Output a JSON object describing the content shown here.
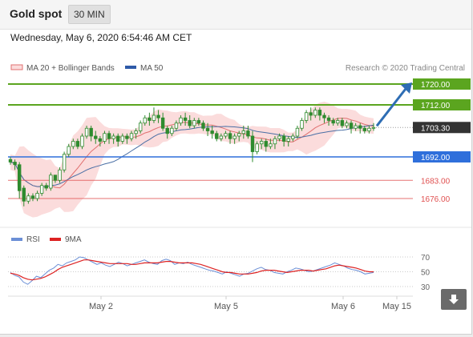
{
  "header": {
    "title": "Gold spot",
    "timeframe": "30 MIN"
  },
  "timestamp": "Wednesday, May 6, 2020 6:54:46 AM CET",
  "legend": {
    "bollinger": "MA 20 + Bollinger Bands",
    "ma50": "MA 50"
  },
  "credit": "Research © 2020 Trading Central",
  "colors": {
    "resistance": "#5ba51f",
    "support": "#2f6fdb",
    "target_red": "#e05050",
    "bollinger_fill": "#fbdcdc",
    "ma20": "#e07070",
    "ma50": "#4a6fa5",
    "candle": "#2e8b2e",
    "current_bg": "#333333",
    "arrow": "#2e6db4",
    "rsi": "#6b8fd6",
    "rsi_ma": "#dd2222"
  },
  "levels": [
    {
      "name": "resistance-2",
      "value": 1720.0,
      "label": "1720.00",
      "kind": "resistance"
    },
    {
      "name": "resistance-1",
      "value": 1712.0,
      "label": "1712.00",
      "kind": "resistance"
    },
    {
      "name": "current-price",
      "value": 1703.3,
      "label": "1703.30",
      "kind": "current"
    },
    {
      "name": "support-1",
      "value": 1692.0,
      "label": "1692.00",
      "kind": "support"
    },
    {
      "name": "support-2",
      "value": 1683.0,
      "label": "1683.00",
      "kind": "red"
    },
    {
      "name": "support-3",
      "value": 1676.0,
      "label": "1676.00",
      "kind": "red"
    }
  ],
  "rsi_panel": {
    "legend_rsi": "RSI",
    "legend_ma": "9MA",
    "ticks": [
      70,
      50,
      30
    ],
    "range": [
      15,
      85
    ],
    "rsi_values": [
      49,
      45,
      43,
      36,
      33,
      38,
      44,
      42,
      47,
      52,
      55,
      60,
      58,
      62,
      64,
      66,
      70,
      69,
      66,
      63,
      60,
      62,
      59,
      57,
      60,
      63,
      61,
      58,
      60,
      62,
      64,
      66,
      63,
      61,
      60,
      65,
      67,
      65,
      60,
      62,
      61,
      63,
      60,
      58,
      56,
      54,
      52,
      51,
      49,
      47,
      50,
      48,
      46,
      44,
      47,
      48,
      51,
      54,
      56,
      53,
      52,
      49,
      48,
      47,
      50,
      52,
      55,
      54,
      52,
      50,
      51,
      53,
      55,
      57,
      59,
      62,
      60,
      58,
      55,
      53,
      52,
      50,
      47,
      48,
      49
    ],
    "ma_values": [
      48,
      47,
      45,
      42,
      40,
      39,
      40,
      41,
      43,
      46,
      49,
      53,
      56,
      58,
      60,
      62,
      64,
      66,
      66,
      65,
      64,
      63,
      62,
      61,
      61,
      61,
      61,
      61,
      60,
      60,
      61,
      62,
      62,
      62,
      62,
      63,
      64,
      64,
      63,
      62,
      62,
      62,
      62,
      61,
      60,
      58,
      56,
      54,
      52,
      50,
      49,
      49,
      48,
      47,
      47,
      47,
      48,
      49,
      51,
      52,
      52,
      52,
      51,
      50,
      49,
      50,
      51,
      52,
      52,
      52,
      51,
      52,
      53,
      54,
      56,
      58,
      59,
      58,
      57,
      56,
      55,
      53,
      51,
      50,
      50
    ]
  },
  "x_axis": {
    "labels": [
      "May 2",
      "May 5",
      "May 6",
      "May 15"
    ]
  },
  "chart_data": {
    "type": "candlestick",
    "title": "Gold spot",
    "ylim": [
      1669,
      1726
    ],
    "candles": [
      [
        1691,
        1690,
        1689
      ],
      [
        1690,
        1689,
        1687
      ],
      [
        1689,
        1679,
        1676
      ],
      [
        1680,
        1675,
        1673
      ],
      [
        1675,
        1677,
        1674
      ],
      [
        1677,
        1676,
        1675
      ],
      [
        1676,
        1678,
        1675
      ],
      [
        1678,
        1681,
        1677
      ],
      [
        1681,
        1680,
        1679
      ],
      [
        1680,
        1685,
        1679
      ],
      [
        1685,
        1683,
        1682
      ],
      [
        1683,
        1687,
        1682
      ],
      [
        1687,
        1693,
        1686
      ],
      [
        1693,
        1696,
        1692
      ],
      [
        1696,
        1698,
        1695
      ],
      [
        1698,
        1696,
        1695
      ],
      [
        1696,
        1700,
        1695
      ],
      [
        1700,
        1703,
        1699
      ],
      [
        1703,
        1700,
        1698
      ],
      [
        1700,
        1699,
        1697
      ],
      [
        1699,
        1698,
        1696
      ],
      [
        1698,
        1701,
        1697
      ],
      [
        1701,
        1699,
        1697
      ],
      [
        1699,
        1700,
        1697
      ],
      [
        1700,
        1698,
        1696
      ],
      [
        1698,
        1700,
        1697
      ],
      [
        1700,
        1699,
        1697
      ],
      [
        1699,
        1701,
        1698
      ],
      [
        1701,
        1702,
        1699
      ],
      [
        1702,
        1705,
        1701
      ],
      [
        1705,
        1707,
        1704
      ],
      [
        1707,
        1706,
        1704
      ],
      [
        1706,
        1708,
        1705
      ],
      [
        1708,
        1707,
        1705
      ],
      [
        1707,
        1703,
        1702
      ],
      [
        1703,
        1701,
        1699
      ],
      [
        1701,
        1703,
        1700
      ],
      [
        1703,
        1705,
        1702
      ],
      [
        1705,
        1707,
        1704
      ],
      [
        1707,
        1706,
        1704
      ],
      [
        1706,
        1704,
        1703
      ],
      [
        1704,
        1706,
        1703
      ],
      [
        1706,
        1705,
        1704
      ],
      [
        1705,
        1703,
        1702
      ],
      [
        1703,
        1702,
        1700
      ],
      [
        1702,
        1701,
        1699
      ],
      [
        1701,
        1699,
        1698
      ],
      [
        1699,
        1700,
        1698
      ],
      [
        1700,
        1701,
        1699
      ],
      [
        1701,
        1699,
        1697
      ],
      [
        1699,
        1700,
        1697
      ],
      [
        1700,
        1701,
        1698
      ],
      [
        1701,
        1702,
        1699
      ],
      [
        1702,
        1700,
        1699
      ],
      [
        1700,
        1694,
        1690
      ],
      [
        1694,
        1697,
        1693
      ],
      [
        1697,
        1698,
        1695
      ],
      [
        1698,
        1696,
        1694
      ],
      [
        1696,
        1697,
        1695
      ],
      [
        1697,
        1699,
        1695
      ],
      [
        1699,
        1700,
        1698
      ],
      [
        1700,
        1698,
        1696
      ],
      [
        1698,
        1699,
        1696
      ],
      [
        1699,
        1700,
        1698
      ],
      [
        1700,
        1703,
        1699
      ],
      [
        1703,
        1706,
        1702
      ],
      [
        1706,
        1709,
        1705
      ],
      [
        1709,
        1708,
        1706
      ],
      [
        1708,
        1710,
        1707
      ],
      [
        1710,
        1708,
        1706
      ],
      [
        1708,
        1707,
        1705
      ],
      [
        1707,
        1706,
        1704
      ],
      [
        1706,
        1705,
        1704
      ],
      [
        1705,
        1706,
        1704
      ],
      [
        1706,
        1704,
        1703
      ],
      [
        1704,
        1705,
        1703
      ],
      [
        1705,
        1703,
        1701
      ],
      [
        1703,
        1704,
        1702
      ],
      [
        1704,
        1703,
        1701
      ],
      [
        1703,
        1702,
        1701
      ],
      [
        1702,
        1703,
        1701
      ],
      [
        1703,
        1703.3,
        1702
      ]
    ],
    "highs": [
      1692,
      1691,
      1690,
      1681,
      1678,
      1678,
      1679,
      1682,
      1682,
      1686,
      1685,
      1688,
      1694,
      1697,
      1699,
      1699,
      1701,
      1704,
      1704,
      1702,
      1700,
      1702,
      1702,
      1701,
      1701,
      1701,
      1701,
      1702,
      1703,
      1706,
      1708,
      1709,
      1711,
      1710,
      1709,
      1704,
      1704,
      1706,
      1708,
      1709,
      1708,
      1707,
      1707,
      1706,
      1705,
      1704,
      1702,
      1701,
      1702,
      1702,
      1701,
      1702,
      1704,
      1704,
      1702,
      1698,
      1699,
      1699,
      1699,
      1700,
      1701,
      1701,
      1700,
      1701,
      1704,
      1707,
      1710,
      1711,
      1711,
      1711,
      1709,
      1708,
      1707,
      1707,
      1707,
      1706,
      1706,
      1705,
      1705,
      1704,
      1704,
      1705
    ]
  }
}
